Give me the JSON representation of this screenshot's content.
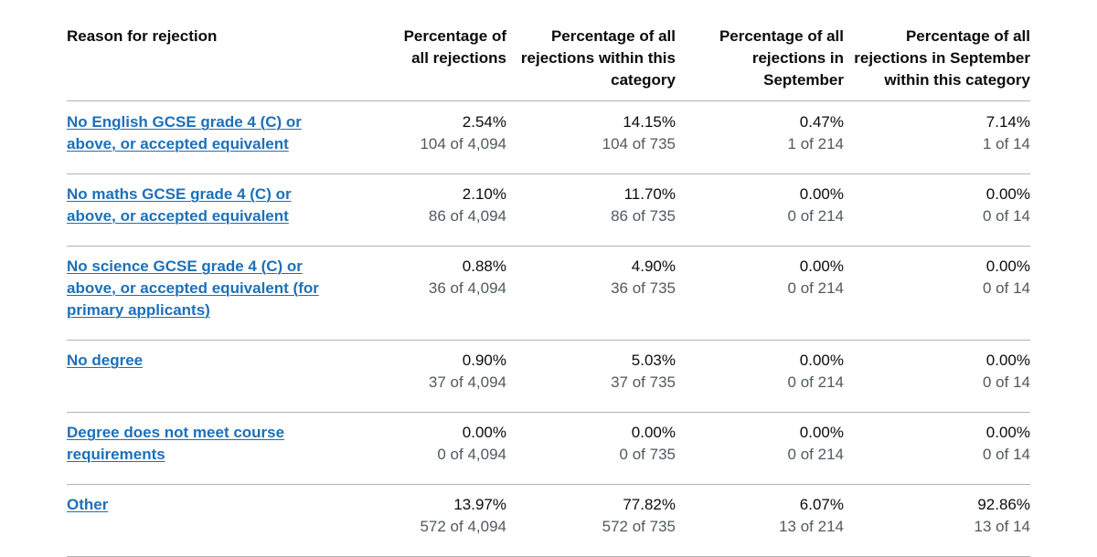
{
  "table": {
    "headers": [
      "Reason for rejection",
      "Percentage of all rejections",
      "Percentage of all rejections within this category",
      "Percentage of all rejections in September",
      "Percentage of all rejections in September within this category"
    ],
    "rows": [
      {
        "reason": "No English GCSE grade 4 (C) or above, or accepted equivalent",
        "cells": [
          {
            "pct": "2.54%",
            "count": "104 of 4,094"
          },
          {
            "pct": "14.15%",
            "count": "104 of 735"
          },
          {
            "pct": "0.47%",
            "count": "1 of 214"
          },
          {
            "pct": "7.14%",
            "count": "1 of 14"
          }
        ]
      },
      {
        "reason": "No maths GCSE grade 4 (C) or above, or accepted equivalent",
        "cells": [
          {
            "pct": "2.10%",
            "count": "86 of 4,094"
          },
          {
            "pct": "11.70%",
            "count": "86 of 735"
          },
          {
            "pct": "0.00%",
            "count": "0 of 214"
          },
          {
            "pct": "0.00%",
            "count": "0 of 14"
          }
        ]
      },
      {
        "reason": "No science GCSE grade 4 (C) or above, or accepted equivalent (for primary applicants)",
        "cells": [
          {
            "pct": "0.88%",
            "count": "36 of 4,094"
          },
          {
            "pct": "4.90%",
            "count": "36 of 735"
          },
          {
            "pct": "0.00%",
            "count": "0 of 214"
          },
          {
            "pct": "0.00%",
            "count": "0 of 14"
          }
        ]
      },
      {
        "reason": "No degree",
        "cells": [
          {
            "pct": "0.90%",
            "count": "37 of 4,094"
          },
          {
            "pct": "5.03%",
            "count": "37 of 735"
          },
          {
            "pct": "0.00%",
            "count": "0 of 214"
          },
          {
            "pct": "0.00%",
            "count": "0 of 14"
          }
        ]
      },
      {
        "reason": "Degree does not meet course requirements",
        "cells": [
          {
            "pct": "0.00%",
            "count": "0 of 4,094"
          },
          {
            "pct": "0.00%",
            "count": "0 of 735"
          },
          {
            "pct": "0.00%",
            "count": "0 of 214"
          },
          {
            "pct": "0.00%",
            "count": "0 of 14"
          }
        ]
      },
      {
        "reason": "Other",
        "cells": [
          {
            "pct": "13.97%",
            "count": "572 of 4,094"
          },
          {
            "pct": "77.82%",
            "count": "572 of 735"
          },
          {
            "pct": "6.07%",
            "count": "13 of 214"
          },
          {
            "pct": "92.86%",
            "count": "13 of 14"
          }
        ]
      }
    ]
  },
  "colors": {
    "link": "#1d70b8",
    "text": "#0b0c0c",
    "secondary_text": "#505a5f",
    "border": "#b1b4b6"
  }
}
